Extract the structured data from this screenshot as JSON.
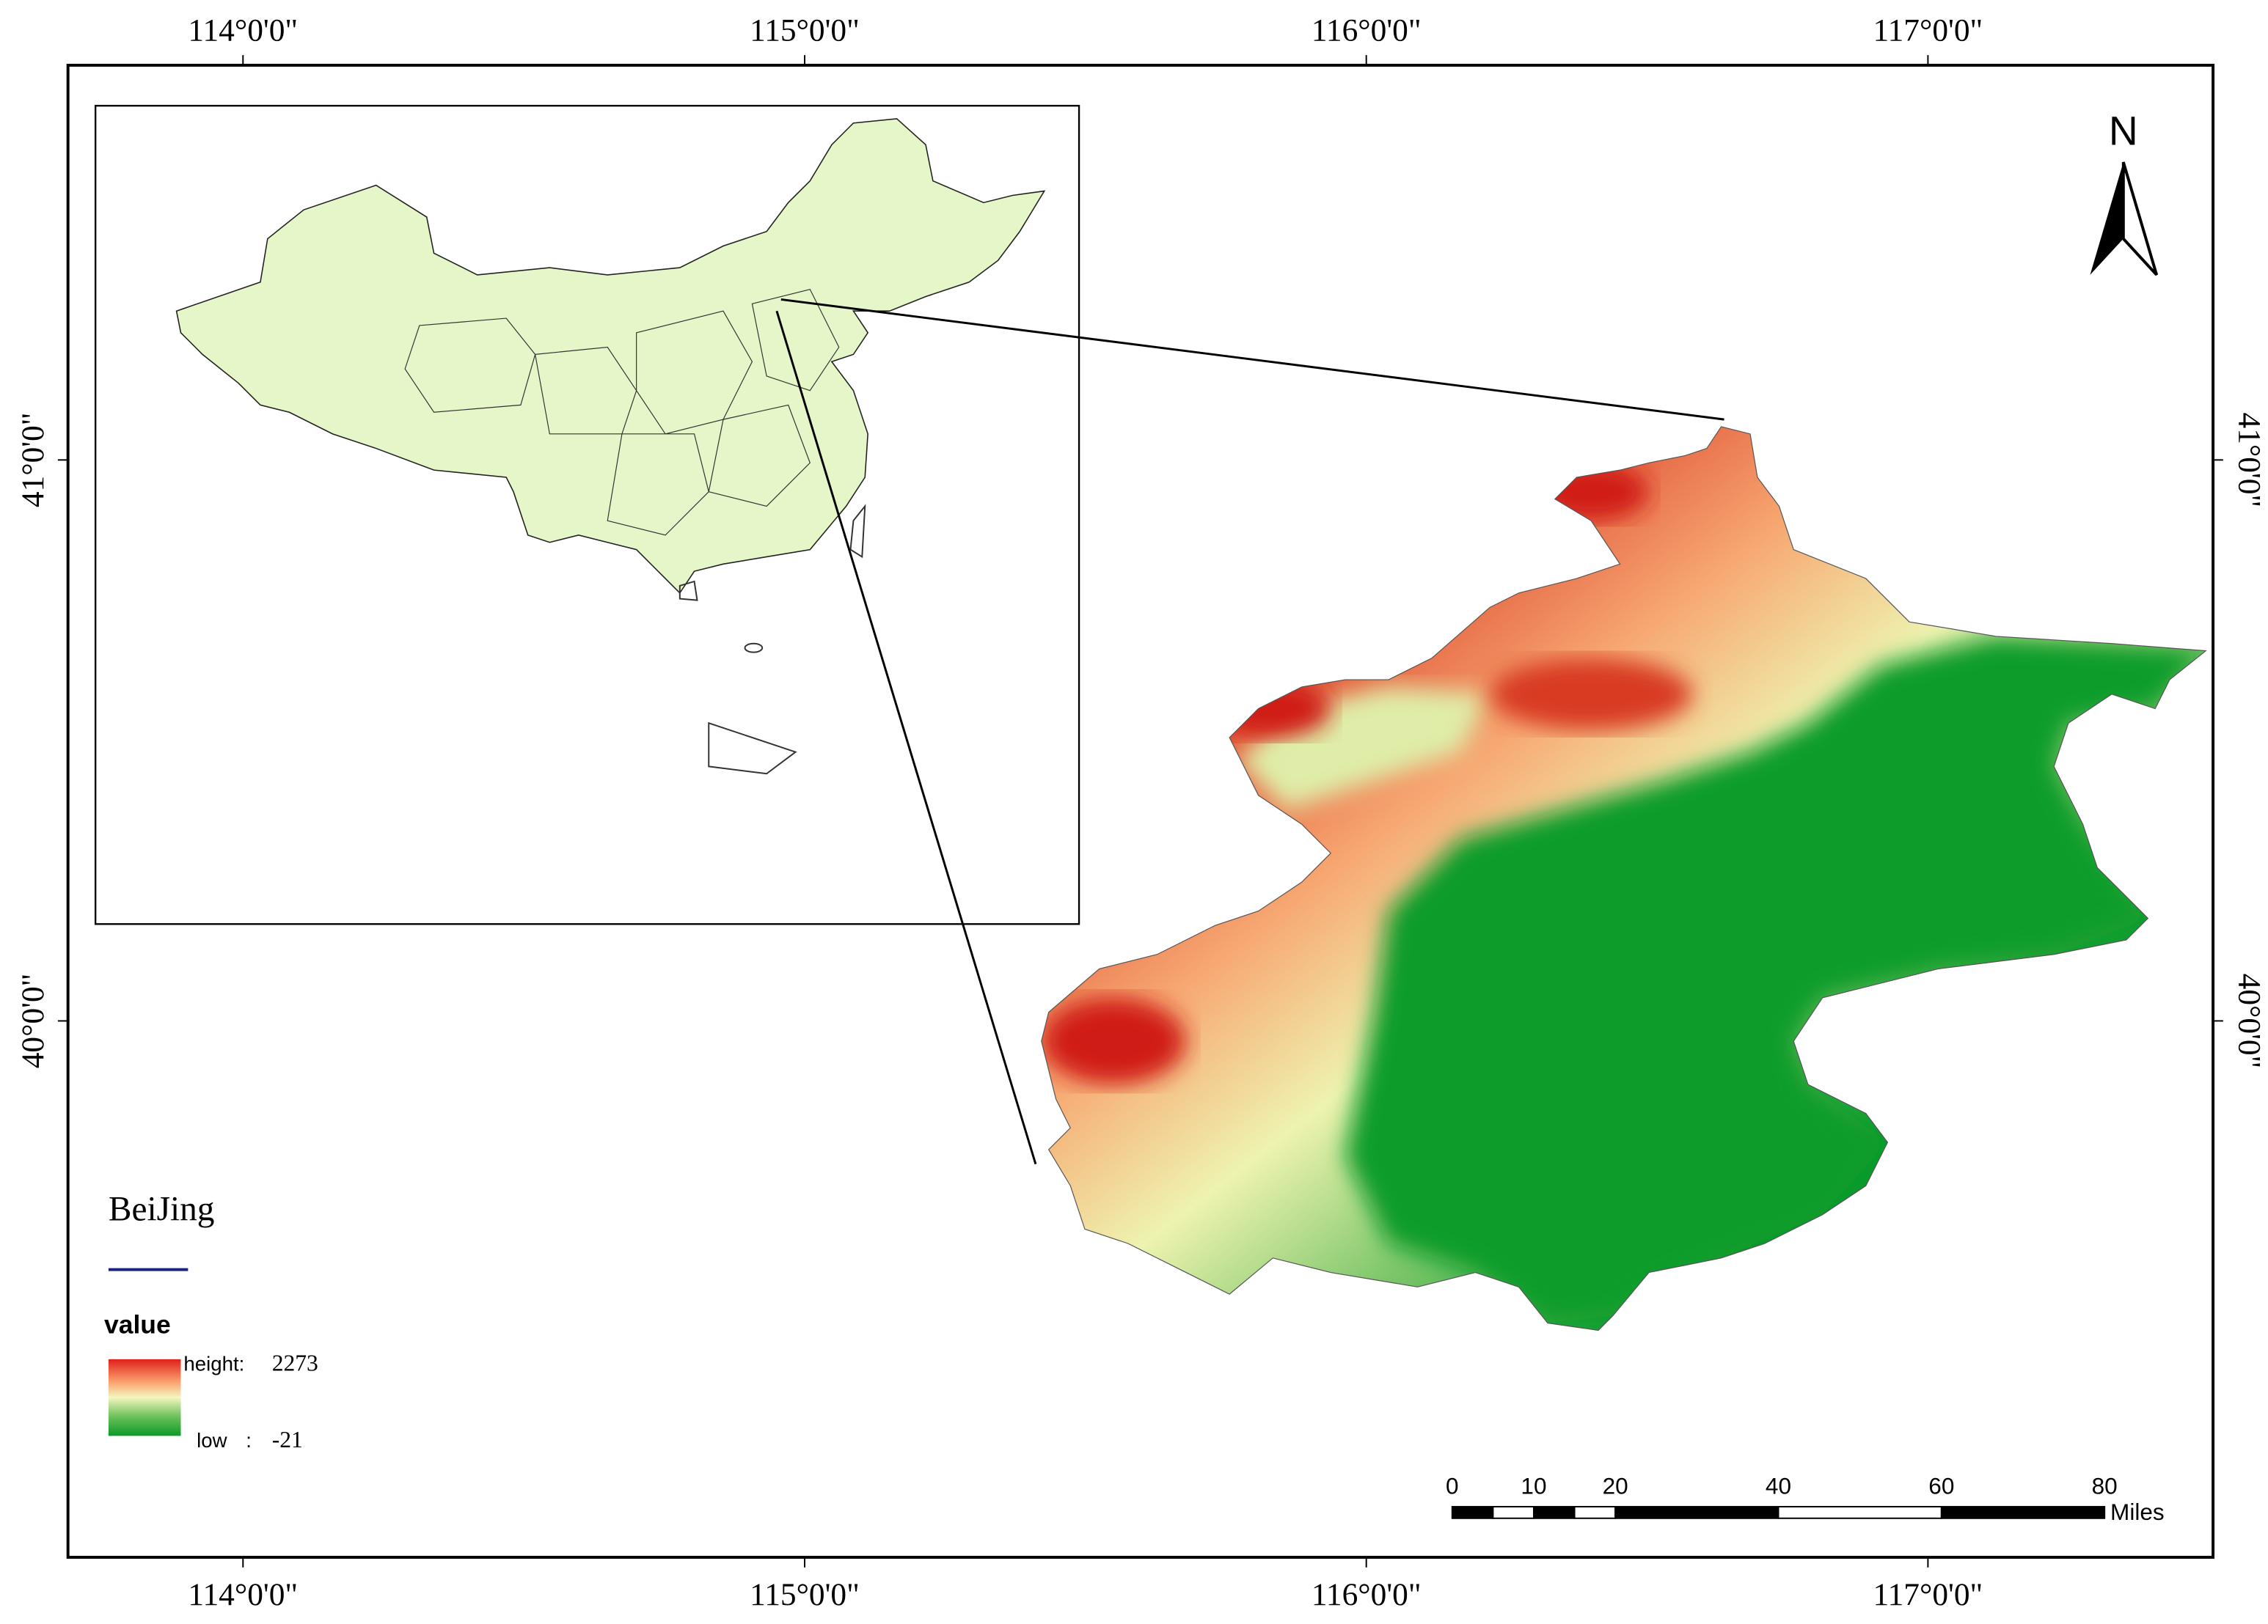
{
  "graticule": {
    "longitudes": [
      {
        "value": 114,
        "label": "114°0'0\""
      },
      {
        "value": 115,
        "label": "115°0'0\""
      },
      {
        "value": 116,
        "label": "116°0'0\""
      },
      {
        "value": 117,
        "label": "117°0'0\""
      }
    ],
    "latitudes": [
      {
        "value": 41,
        "label": "41°0'0\""
      },
      {
        "value": 40,
        "label": "40°0'0\""
      }
    ]
  },
  "north_arrow": "N",
  "legend": {
    "title": "BeiJing",
    "field": "value",
    "high_label": "height:",
    "high_value": "2273",
    "low_label": "low",
    "separator": ":",
    "low_value": "-21"
  },
  "scale_bar": {
    "ticks": [
      0,
      10,
      20,
      40,
      60,
      80
    ],
    "unit": "Miles"
  }
}
